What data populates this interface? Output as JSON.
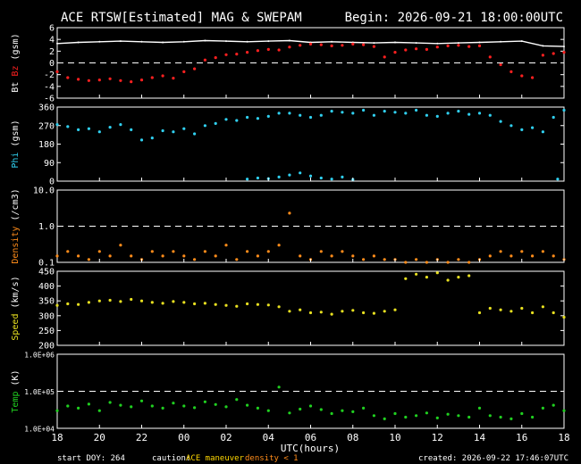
{
  "header": {
    "title": "ACE RTSW[Estimated] MAG & SWEPAM",
    "begin": "Begin: 2026-09-21 18:00:00UTC"
  },
  "footer": {
    "start_doy": "start DOY: 264",
    "caution_label": "caution:",
    "maneuver_label": "ACE maneuver",
    "density_note": "density < 1",
    "created": "created: 2026-09-22 17:46:07UTC"
  },
  "colors": {
    "bt": "#ffffff",
    "bz": "#ff2020",
    "phi": "#30d0f0",
    "density": "#ff8c1a",
    "speed": "#e8e020",
    "temp": "#20d020",
    "caution_maneuver": "#ffd700",
    "caution_density": "#ff8c1a"
  },
  "chart_data": {
    "type": "scatter",
    "xlabel": "UTC(hours)",
    "x_ticks": [
      "18",
      "20",
      "22",
      "00",
      "02",
      "04",
      "06",
      "08",
      "10",
      "12",
      "14",
      "16",
      "18"
    ],
    "x_range": [
      0,
      24
    ],
    "panels": [
      {
        "id": "mag",
        "ylabel_parts": [
          {
            "text": "Bt",
            "color": "#ffffff"
          },
          {
            "text": " Bz",
            "color": "#ff2020"
          },
          {
            "text": " (gsm)",
            "color": "#ffffff"
          }
        ],
        "ylim": [
          -6,
          6
        ],
        "yticks": [
          "-6",
          "-4",
          "-2",
          "0",
          "2",
          "4",
          "6"
        ],
        "ytick_values": [
          -6,
          -4,
          -2,
          0,
          2,
          4,
          6
        ],
        "ref_lines": [
          0
        ],
        "series": [
          {
            "name": "Bt",
            "color": "#ffffff",
            "style": "line",
            "x": [
              0,
              1,
              2,
              3,
              4,
              5,
              6,
              7,
              8,
              9,
              10,
              11,
              12,
              13,
              14,
              15,
              16,
              17,
              18,
              19,
              20,
              21,
              22,
              23,
              24
            ],
            "y": [
              3.3,
              3.5,
              3.6,
              3.7,
              3.6,
              3.5,
              3.6,
              3.8,
              3.7,
              3.6,
              3.7,
              3.8,
              3.5,
              3.6,
              3.5,
              3.4,
              3.5,
              3.4,
              3.3,
              3.4,
              3.5,
              3.6,
              3.7,
              2.9,
              2.8
            ]
          },
          {
            "name": "Bz",
            "color": "#ff2020",
            "style": "scatter",
            "x": [
              0,
              0.5,
              1,
              1.5,
              2,
              2.5,
              3,
              3.5,
              4,
              4.5,
              5,
              5.5,
              6,
              6.5,
              7,
              7.5,
              8,
              8.5,
              9,
              9.5,
              10,
              10.5,
              11,
              11.5,
              12,
              12.5,
              13,
              13.5,
              14,
              14.5,
              15,
              15.5,
              16,
              16.5,
              17,
              17.5,
              18,
              18.5,
              19,
              19.5,
              20,
              20.5,
              21,
              21.5,
              22,
              22.5,
              23,
              23.5,
              24
            ],
            "y": [
              -1.5,
              -2.5,
              -2.8,
              -3.0,
              -2.9,
              -2.7,
              -3.0,
              -3.2,
              -2.9,
              -2.5,
              -2.2,
              -2.6,
              -1.5,
              -1.0,
              0.5,
              0.9,
              1.4,
              1.5,
              1.8,
              2.1,
              2.3,
              2.2,
              2.7,
              3.0,
              3.2,
              3.1,
              2.9,
              3.0,
              3.2,
              3.1,
              2.8,
              1.0,
              1.8,
              2.2,
              2.4,
              2.3,
              2.7,
              2.9,
              3.0,
              2.8,
              2.9,
              1.0,
              -0.3,
              -1.5,
              -2.2,
              -2.5,
              1.3,
              1.6,
              1.8
            ]
          }
        ]
      },
      {
        "id": "phi",
        "ylabel_parts": [
          {
            "text": "Phi",
            "color": "#30d0f0"
          },
          {
            "text": " (gsm)",
            "color": "#ffffff"
          }
        ],
        "ylim": [
          0,
          360
        ],
        "yticks": [
          "0",
          "90",
          "180",
          "270",
          "360"
        ],
        "ytick_values": [
          0,
          90,
          180,
          270,
          360
        ],
        "ref_lines": [],
        "series": [
          {
            "name": "Phi",
            "color": "#30d0f0",
            "style": "scatter",
            "x": [
              0,
              0.5,
              1,
              1.5,
              2,
              2.5,
              3,
              3.5,
              4,
              4.5,
              5,
              5.5,
              6,
              6.5,
              7,
              7.5,
              8,
              8.5,
              9,
              9.5,
              10,
              10.5,
              11,
              11.5,
              12,
              12.5,
              13,
              13.5,
              14,
              14.5,
              15,
              15.5,
              16,
              16.5,
              17,
              17.5,
              18,
              18.5,
              19,
              19.5,
              20,
              20.5,
              21,
              21.5,
              22,
              22.5,
              23,
              23.5,
              24
            ],
            "y": [
              275,
              265,
              250,
              255,
              240,
              262,
              275,
              250,
              200,
              210,
              245,
              240,
              255,
              230,
              270,
              280,
              300,
              295,
              310,
              305,
              315,
              330,
              330,
              320,
              310,
              320,
              340,
              335,
              330,
              345,
              320,
              340,
              335,
              330,
              345,
              320,
              315,
              330,
              340,
              325,
              330,
              320,
              290,
              270,
              250,
              260,
              240,
              310,
              345
            ]
          },
          {
            "name": "Phi-low",
            "color": "#30d0f0",
            "style": "scatter",
            "x": [
              9.0,
              9.5,
              10.0,
              10.5,
              11.0,
              11.5,
              12.0,
              12.5,
              13.0,
              13.5,
              14.0,
              23.7
            ],
            "y": [
              10,
              15,
              12,
              20,
              30,
              40,
              25,
              15,
              10,
              20,
              8,
              10
            ]
          }
        ]
      },
      {
        "id": "density",
        "ylabel_parts": [
          {
            "text": "Density",
            "color": "#ff8c1a"
          },
          {
            "text": " (/cm3)",
            "color": "#ffffff"
          }
        ],
        "ylim": [
          0.1,
          10
        ],
        "log": true,
        "yticks": [
          "0.1",
          "1.0",
          "10.0"
        ],
        "ytick_values": [
          0.1,
          1,
          10
        ],
        "ref_lines": [
          1
        ],
        "series": [
          {
            "name": "Density",
            "color": "#ff8c1a",
            "style": "scatter",
            "x": [
              0,
              0.5,
              1,
              1.5,
              2,
              2.5,
              3,
              3.5,
              4,
              4.5,
              5,
              5.5,
              6,
              6.5,
              7,
              7.5,
              8,
              8.5,
              9,
              9.5,
              10,
              10.5,
              11,
              11.5,
              12,
              12.5,
              13,
              13.5,
              14,
              14.5,
              15,
              15.5,
              16,
              16.5,
              17,
              17.5,
              18,
              18.5,
              19,
              19.5,
              20,
              20.5,
              21,
              21.5,
              22,
              22.5,
              23,
              23.5,
              24
            ],
            "y": [
              0.15,
              0.2,
              0.15,
              0.12,
              0.2,
              0.15,
              0.3,
              0.15,
              0.12,
              0.2,
              0.15,
              0.2,
              0.15,
              0.12,
              0.2,
              0.15,
              0.3,
              0.12,
              0.2,
              0.15,
              0.2,
              0.3,
              2.3,
              0.15,
              0.12,
              0.2,
              0.15,
              0.2,
              0.15,
              0.12,
              0.15,
              0.12,
              0.12,
              0.1,
              0.12,
              0.1,
              0.12,
              0.1,
              0.12,
              0.1,
              0.12,
              0.15,
              0.2,
              0.15,
              0.2,
              0.15,
              0.2,
              0.15,
              0.12
            ]
          }
        ]
      },
      {
        "id": "speed",
        "ylabel_parts": [
          {
            "text": "Speed",
            "color": "#e8e020"
          },
          {
            "text": " (km/s)",
            "color": "#ffffff"
          }
        ],
        "ylim": [
          200,
          450
        ],
        "yticks": [
          "200",
          "250",
          "300",
          "350",
          "400",
          "450"
        ],
        "ytick_values": [
          200,
          250,
          300,
          350,
          400,
          450
        ],
        "ref_lines": [],
        "series": [
          {
            "name": "Speed",
            "color": "#e8e020",
            "style": "scatter",
            "x": [
              0,
              0.5,
              1,
              1.5,
              2,
              2.5,
              3,
              3.5,
              4,
              4.5,
              5,
              5.5,
              6,
              6.5,
              7,
              7.5,
              8,
              8.5,
              9,
              9.5,
              10,
              10.5,
              11,
              11.5,
              12,
              12.5,
              13,
              13.5,
              14,
              14.5,
              15,
              15.5,
              16,
              16.5,
              17,
              17.5,
              18,
              18.5,
              19,
              19.5,
              20,
              20.5,
              21,
              21.5,
              22,
              22.5,
              23,
              23.5,
              24
            ],
            "y": [
              335,
              340,
              338,
              345,
              350,
              352,
              348,
              355,
              350,
              345,
              342,
              348,
              345,
              340,
              342,
              338,
              335,
              332,
              340,
              338,
              336,
              330,
              315,
              320,
              310,
              312,
              305,
              315,
              318,
              310,
              308,
              315,
              320,
              425,
              440,
              430,
              445,
              420,
              430,
              435,
              310,
              325,
              320,
              315,
              325,
              310,
              330,
              310,
              295
            ]
          }
        ]
      },
      {
        "id": "temp",
        "ylabel_parts": [
          {
            "text": "Temp",
            "color": "#20d020"
          },
          {
            "text": " (K)",
            "color": "#ffffff"
          }
        ],
        "ylim": [
          10000,
          1000000
        ],
        "log": true,
        "yticks": [
          "1.0E+04",
          "1.0E+05",
          "1.0E+06"
        ],
        "ytick_values": [
          10000,
          100000,
          1000000
        ],
        "ref_lines": [
          100000
        ],
        "series": [
          {
            "name": "Temp",
            "color": "#20d020",
            "style": "scatter",
            "x": [
              0,
              0.5,
              1,
              1.5,
              2,
              2.5,
              3,
              3.5,
              4,
              4.5,
              5,
              5.5,
              6,
              6.5,
              7,
              7.5,
              8,
              8.5,
              9,
              9.5,
              10,
              10.5,
              11,
              11.5,
              12,
              12.5,
              13,
              13.5,
              14,
              14.5,
              15,
              15.5,
              16,
              16.5,
              17,
              17.5,
              18,
              18.5,
              19,
              19.5,
              20,
              20.5,
              21,
              21.5,
              22,
              22.5,
              23,
              23.5,
              24
            ],
            "y": [
              30000,
              40000,
              35000,
              45000,
              30000,
              50000,
              42000,
              38000,
              55000,
              40000,
              35000,
              48000,
              40000,
              36000,
              52000,
              44000,
              38000,
              60000,
              42000,
              35000,
              30000,
              130000,
              26000,
              33000,
              40000,
              32000,
              25000,
              30000,
              28000,
              35000,
              22000,
              18000,
              25000,
              20000,
              22000,
              26000,
              19000,
              24000,
              22000,
              20000,
              35000,
              22000,
              20000,
              18000,
              25000,
              20000,
              35000,
              42000,
              30000
            ]
          }
        ]
      }
    ]
  }
}
